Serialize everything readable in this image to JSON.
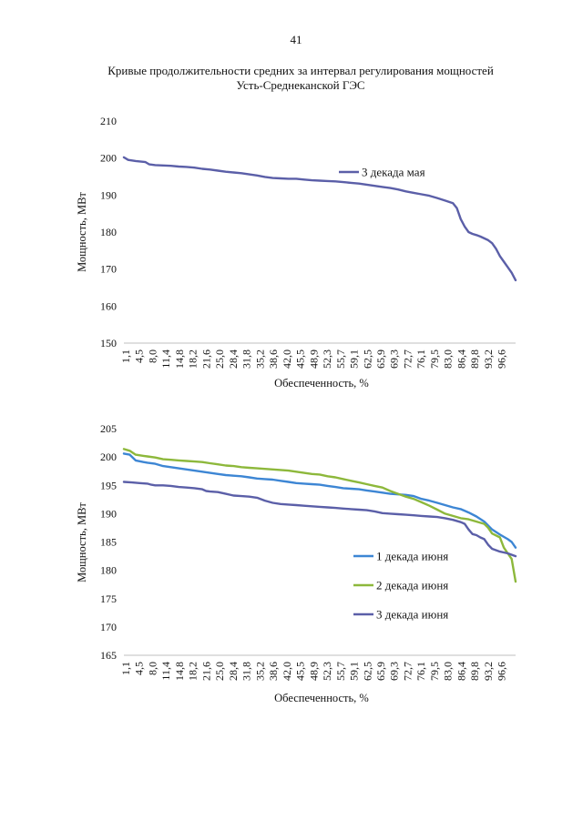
{
  "page": {
    "number": "41",
    "title_line1": "Кривые продолжительности средних за интервал регулирования мощностей",
    "title_line2": "Усть-Среднеканской ГЭС"
  },
  "chart_data": [
    {
      "type": "line",
      "title": "",
      "xlabel": "Обеспеченность, %",
      "ylabel": "Мощность, МВт",
      "ylim": [
        150,
        210
      ],
      "yticks": [
        150,
        160,
        170,
        180,
        190,
        200,
        210
      ],
      "xlim": [
        0,
        100
      ],
      "x_tick_labels": [
        "1,1",
        "4,5",
        "8,0",
        "11,4",
        "14,8",
        "18,2",
        "21,6",
        "25,0",
        "28,4",
        "31,8",
        "35,2",
        "38,6",
        "42,0",
        "45,5",
        "48,9",
        "52,3",
        "55,7",
        "59,1",
        "62,5",
        "65,9",
        "69,3",
        "72,7",
        "76,1",
        "79,5",
        "83,0",
        "86,4",
        "89,8",
        "93,2",
        "96,6"
      ],
      "legend_position": "top-right",
      "series": [
        {
          "name": "3 декада мая",
          "color": "#5b5fa8",
          "x": [
            0,
            1.1,
            3,
            5.5,
            6.5,
            8,
            10,
            12,
            14,
            16,
            18,
            20,
            22,
            24,
            26,
            28,
            30,
            32,
            34,
            36,
            38,
            40,
            42,
            44,
            46,
            48,
            50,
            52,
            54,
            56,
            58,
            60,
            62,
            64,
            66,
            68,
            70,
            72,
            74,
            76,
            78,
            80,
            82,
            84,
            85,
            86,
            87,
            88,
            89,
            90,
            91,
            92,
            93,
            94,
            95,
            96,
            97,
            98,
            99,
            100
          ],
          "values": [
            200.2,
            199.5,
            199.2,
            198.9,
            198.3,
            198.1,
            198.0,
            197.9,
            197.7,
            197.6,
            197.4,
            197.1,
            196.9,
            196.6,
            196.3,
            196.1,
            195.9,
            195.6,
            195.3,
            194.9,
            194.6,
            194.5,
            194.4,
            194.4,
            194.2,
            194.0,
            193.9,
            193.8,
            193.7,
            193.5,
            193.3,
            193.1,
            192.8,
            192.5,
            192.2,
            191.9,
            191.5,
            191.0,
            190.6,
            190.2,
            189.8,
            189.2,
            188.5,
            187.8,
            186.5,
            183.5,
            181.5,
            180.0,
            179.5,
            179.2,
            178.8,
            178.3,
            177.8,
            177.0,
            175.5,
            173.5,
            172.0,
            170.5,
            169.0,
            167.0
          ]
        }
      ]
    },
    {
      "type": "line",
      "title": "",
      "xlabel": "Обеспеченность, %",
      "ylabel": "Мощность, МВт",
      "ylim": [
        165,
        205
      ],
      "yticks": [
        165,
        170,
        175,
        180,
        185,
        190,
        195,
        200,
        205
      ],
      "xlim": [
        0,
        100
      ],
      "x_tick_labels": [
        "1,1",
        "4,5",
        "8,0",
        "11,4",
        "14,8",
        "18,2",
        "21,6",
        "25,0",
        "28,4",
        "31,8",
        "35,2",
        "38,6",
        "42,0",
        "45,5",
        "48,9",
        "52,3",
        "55,7",
        "59,1",
        "62,5",
        "65,9",
        "69,3",
        "72,7",
        "76,1",
        "79,5",
        "83,0",
        "86,4",
        "89,8",
        "93,2",
        "96,6"
      ],
      "legend_position": "bottom-right",
      "series": [
        {
          "name": "1 декада июня",
          "color": "#3d86d4",
          "x": [
            0,
            1.5,
            3,
            5,
            6,
            8,
            10,
            12,
            14,
            16,
            18,
            20,
            22,
            24,
            26,
            28,
            30,
            32,
            34,
            36,
            38,
            40,
            42,
            44,
            46,
            48,
            50,
            52,
            54,
            56,
            58,
            60,
            62,
            64,
            66,
            68,
            70,
            72,
            74,
            76,
            78,
            80,
            82,
            84,
            86,
            88,
            90,
            92,
            94,
            96,
            98,
            99,
            100
          ],
          "values": [
            200.6,
            200.4,
            199.4,
            199.1,
            199.0,
            198.8,
            198.4,
            198.2,
            198.0,
            197.8,
            197.6,
            197.4,
            197.2,
            197.0,
            196.8,
            196.7,
            196.6,
            196.4,
            196.2,
            196.1,
            196.0,
            195.8,
            195.6,
            195.4,
            195.3,
            195.2,
            195.1,
            194.9,
            194.7,
            194.5,
            194.4,
            194.3,
            194.1,
            193.9,
            193.7,
            193.5,
            193.4,
            193.3,
            193.1,
            192.6,
            192.3,
            191.9,
            191.5,
            191.1,
            190.8,
            190.2,
            189.5,
            188.6,
            187.2,
            186.3,
            185.5,
            185.0,
            184.0
          ]
        },
        {
          "name": "2 декада июня",
          "color": "#8db83b",
          "x": [
            0,
            1.5,
            3,
            5,
            6,
            8,
            10,
            12,
            14,
            16,
            18,
            20,
            22,
            24,
            26,
            28,
            30,
            32,
            34,
            36,
            38,
            40,
            42,
            44,
            46,
            48,
            50,
            52,
            54,
            56,
            58,
            60,
            62,
            64,
            66,
            68,
            70,
            72,
            74,
            76,
            78,
            80,
            82,
            84,
            86,
            88,
            90,
            92,
            93,
            94,
            96,
            97,
            98,
            99,
            100
          ],
          "values": [
            201.4,
            201.1,
            200.4,
            200.2,
            200.1,
            199.9,
            199.6,
            199.5,
            199.4,
            199.3,
            199.2,
            199.1,
            198.9,
            198.7,
            198.5,
            198.4,
            198.2,
            198.1,
            198.0,
            197.9,
            197.8,
            197.7,
            197.6,
            197.4,
            197.2,
            197.0,
            196.9,
            196.6,
            196.4,
            196.1,
            195.8,
            195.5,
            195.2,
            194.9,
            194.6,
            194.0,
            193.5,
            193.0,
            192.6,
            192.0,
            191.4,
            190.7,
            190.0,
            189.6,
            189.2,
            189.0,
            188.6,
            188.2,
            187.5,
            186.5,
            185.8,
            184.0,
            183.0,
            182.0,
            178.0
          ]
        },
        {
          "name": "3 декада июня",
          "color": "#5b5fa8",
          "x": [
            0,
            2,
            4,
            6,
            7,
            8,
            10,
            12,
            14,
            16,
            18,
            20,
            21,
            22,
            24,
            26,
            28,
            30,
            32,
            34,
            36,
            38,
            40,
            42,
            44,
            46,
            48,
            50,
            52,
            54,
            56,
            58,
            60,
            62,
            64,
            66,
            68,
            70,
            72,
            74,
            76,
            78,
            80,
            82,
            84,
            86,
            87,
            88,
            89,
            90,
            91,
            92,
            93,
            94,
            96,
            98,
            100
          ],
          "values": [
            195.6,
            195.5,
            195.4,
            195.3,
            195.1,
            195.0,
            195.0,
            194.9,
            194.7,
            194.6,
            194.5,
            194.3,
            194.0,
            193.9,
            193.8,
            193.5,
            193.2,
            193.1,
            193.0,
            192.8,
            192.3,
            191.9,
            191.7,
            191.6,
            191.5,
            191.4,
            191.3,
            191.2,
            191.1,
            191.0,
            190.9,
            190.8,
            190.7,
            190.6,
            190.4,
            190.1,
            190.0,
            189.9,
            189.8,
            189.7,
            189.6,
            189.5,
            189.4,
            189.2,
            188.9,
            188.5,
            188.2,
            187.2,
            186.4,
            186.2,
            185.8,
            185.5,
            184.5,
            183.8,
            183.3,
            183.0,
            182.5
          ]
        }
      ]
    }
  ]
}
